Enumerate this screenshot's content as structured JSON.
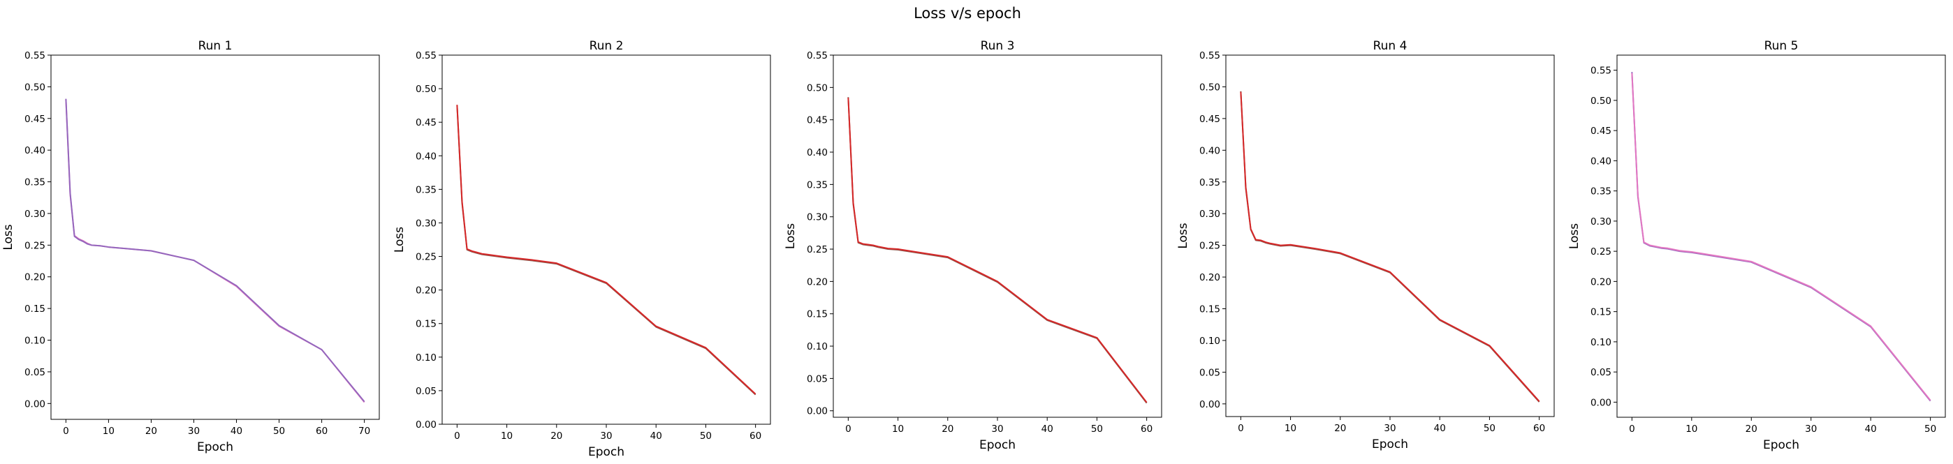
{
  "figure_title": "Loss v/s epoch",
  "chart_data": [
    {
      "type": "line",
      "title": "Run 1",
      "xlabel": "Epoch",
      "ylabel": "Loss",
      "xlim": [
        -3.5,
        73.5
      ],
      "ylim": [
        -0.025,
        0.55
      ],
      "xticks": [
        0,
        10,
        20,
        30,
        40,
        50,
        60,
        70
      ],
      "yticks": [
        0.0,
        0.05,
        0.1,
        0.15,
        0.2,
        0.25,
        0.3,
        0.35,
        0.4,
        0.45,
        0.5,
        0.55
      ],
      "grid": false,
      "series": [
        {
          "color": "#e377c2",
          "x": [
            0,
            1,
            2,
            3,
            4,
            5,
            6,
            8,
            10,
            15,
            20,
            30,
            40,
            50,
            60,
            70
          ],
          "y": [
            0.48,
            0.33,
            0.265,
            0.26,
            0.257,
            0.253,
            0.25,
            0.249,
            0.247,
            0.244,
            0.241,
            0.226,
            0.185,
            0.122,
            0.085,
            0.002
          ]
        },
        {
          "color": "#9467bd",
          "x": [
            0,
            1,
            2,
            3,
            4,
            5,
            6,
            8,
            10,
            15,
            20,
            30,
            40,
            50,
            60,
            70
          ],
          "y": [
            0.481,
            0.332,
            0.264,
            0.259,
            0.256,
            0.252,
            0.25,
            0.249,
            0.247,
            0.244,
            0.241,
            0.226,
            0.186,
            0.123,
            0.085,
            0.003
          ]
        }
      ]
    },
    {
      "type": "line",
      "title": "Run 2",
      "xlabel": "Epoch",
      "ylabel": "Loss",
      "xlim": [
        -3,
        63
      ],
      "ylim": [
        0.0,
        0.55
      ],
      "xticks": [
        0,
        10,
        20,
        30,
        40,
        50,
        60
      ],
      "yticks": [
        0.0,
        0.05,
        0.1,
        0.15,
        0.2,
        0.25,
        0.3,
        0.35,
        0.4,
        0.45,
        0.5,
        0.55
      ],
      "grid": false,
      "series": [
        {
          "color": "#8c564b",
          "x": [
            0,
            1,
            2,
            3,
            4,
            5,
            6,
            8,
            10,
            15,
            20,
            30,
            40,
            50,
            60
          ],
          "y": [
            0.475,
            0.33,
            0.26,
            0.257,
            0.255,
            0.253,
            0.252,
            0.25,
            0.248,
            0.244,
            0.239,
            0.21,
            0.145,
            0.113,
            0.044
          ]
        },
        {
          "color": "#d62728",
          "x": [
            0,
            1,
            2,
            3,
            4,
            5,
            6,
            8,
            10,
            15,
            20,
            30,
            40,
            50,
            60
          ],
          "y": [
            0.476,
            0.332,
            0.261,
            0.258,
            0.256,
            0.254,
            0.253,
            0.251,
            0.249,
            0.245,
            0.24,
            0.211,
            0.146,
            0.114,
            0.045
          ]
        }
      ]
    },
    {
      "type": "line",
      "title": "Run 3",
      "xlabel": "Epoch",
      "ylabel": "Loss",
      "xlim": [
        -3,
        63
      ],
      "ylim": [
        -0.01,
        0.55
      ],
      "xticks": [
        0,
        10,
        20,
        30,
        40,
        50,
        60
      ],
      "yticks": [
        0.0,
        0.05,
        0.1,
        0.15,
        0.2,
        0.25,
        0.3,
        0.35,
        0.4,
        0.45,
        0.5,
        0.55
      ],
      "grid": false,
      "series": [
        {
          "color": "#8c564b",
          "x": [
            0,
            1,
            2,
            3,
            4,
            5,
            6,
            8,
            10,
            15,
            20,
            30,
            40,
            50,
            60
          ],
          "y": [
            0.485,
            0.32,
            0.26,
            0.257,
            0.256,
            0.255,
            0.253,
            0.25,
            0.249,
            0.243,
            0.237,
            0.199,
            0.14,
            0.112,
            0.012
          ]
        },
        {
          "color": "#d62728",
          "x": [
            0,
            1,
            2,
            3,
            4,
            5,
            6,
            8,
            10,
            15,
            20,
            30,
            40,
            50,
            60
          ],
          "y": [
            0.484,
            0.322,
            0.261,
            0.258,
            0.257,
            0.256,
            0.254,
            0.251,
            0.25,
            0.244,
            0.238,
            0.2,
            0.141,
            0.113,
            0.013
          ]
        }
      ]
    },
    {
      "type": "line",
      "title": "Run 4",
      "xlabel": "Epoch",
      "ylabel": "Loss",
      "xlim": [
        -3,
        63
      ],
      "ylim": [
        -0.02,
        0.55
      ],
      "xticks": [
        0,
        10,
        20,
        30,
        40,
        50,
        60
      ],
      "yticks": [
        0.0,
        0.05,
        0.1,
        0.15,
        0.2,
        0.25,
        0.3,
        0.35,
        0.4,
        0.45,
        0.5,
        0.55
      ],
      "grid": false,
      "series": [
        {
          "color": "#8c564b",
          "x": [
            0,
            1,
            2,
            3,
            4,
            5,
            6,
            8,
            10,
            15,
            20,
            30,
            40,
            50,
            60
          ],
          "y": [
            0.493,
            0.34,
            0.275,
            0.258,
            0.257,
            0.254,
            0.252,
            0.249,
            0.25,
            0.244,
            0.237,
            0.207,
            0.132,
            0.091,
            0.003
          ]
        },
        {
          "color": "#d62728",
          "x": [
            0,
            1,
            2,
            3,
            4,
            5,
            6,
            8,
            10,
            15,
            20,
            30,
            40,
            50,
            60
          ],
          "y": [
            0.492,
            0.342,
            0.276,
            0.259,
            0.258,
            0.255,
            0.253,
            0.25,
            0.251,
            0.245,
            0.238,
            0.208,
            0.133,
            0.092,
            0.004
          ]
        }
      ]
    },
    {
      "type": "line",
      "title": "Run 5",
      "xlabel": "Epoch",
      "ylabel": "Loss",
      "xlim": [
        -2.5,
        52.5
      ],
      "ylim": [
        -0.025,
        0.575
      ],
      "xticks": [
        0,
        10,
        20,
        30,
        40,
        50
      ],
      "yticks": [
        0.0,
        0.05,
        0.1,
        0.15,
        0.2,
        0.25,
        0.3,
        0.35,
        0.4,
        0.45,
        0.5,
        0.55
      ],
      "grid": false,
      "series": [
        {
          "color": "#9467bd",
          "x": [
            0,
            1,
            2,
            3,
            4,
            5,
            6,
            8,
            10,
            15,
            20,
            30,
            40,
            50
          ],
          "y": [
            0.547,
            0.34,
            0.264,
            0.259,
            0.257,
            0.255,
            0.254,
            0.25,
            0.248,
            0.24,
            0.232,
            0.19,
            0.125,
            0.002
          ]
        },
        {
          "color": "#e377c2",
          "x": [
            0,
            1,
            2,
            3,
            4,
            5,
            6,
            8,
            10,
            15,
            20,
            30,
            40,
            50
          ],
          "y": [
            0.545,
            0.342,
            0.265,
            0.26,
            0.258,
            0.256,
            0.255,
            0.251,
            0.249,
            0.241,
            0.233,
            0.191,
            0.126,
            0.003
          ]
        }
      ]
    }
  ]
}
